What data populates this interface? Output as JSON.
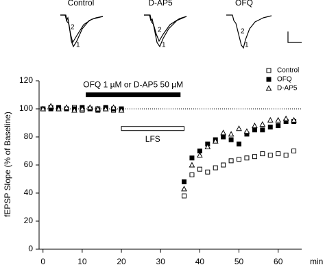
{
  "chart_data": {
    "type": "scatter",
    "traces": [
      {
        "label": "Control"
      },
      {
        "label": "D-AP5"
      },
      {
        "label": "OFQ"
      }
    ],
    "trace_markers": [
      "1",
      "2"
    ],
    "ylabel": "fEPSP Slope (% of Baseline)",
    "xlabel": "min",
    "xlim": [
      -1,
      66
    ],
    "xticks": [
      0,
      10,
      20,
      30,
      40,
      50,
      60
    ],
    "ylim": [
      0,
      120
    ],
    "yticks": [
      0,
      20,
      40,
      60,
      80,
      100,
      120
    ],
    "reference_line": 100,
    "annotations": [
      {
        "text": "OFQ 1 µM or D-AP5 50 µM",
        "x": [
          11,
          35
        ],
        "y": 110,
        "style": "filled"
      },
      {
        "text": "LFS",
        "x": [
          20,
          36
        ],
        "y": 86,
        "style": "open"
      }
    ],
    "legend": "upper right",
    "x": [
      0,
      2,
      4,
      6,
      8,
      10,
      12,
      14,
      16,
      18,
      20,
      36,
      38,
      40,
      42,
      44,
      46,
      48,
      50,
      52,
      54,
      56,
      58,
      60,
      62,
      64
    ],
    "series": [
      {
        "name": "Control",
        "color": "#000000",
        "marker": "square-open",
        "values": [
          100,
          101,
          100,
          100,
          101,
          99,
          100,
          100,
          100,
          99,
          100,
          38,
          53,
          57,
          55,
          58,
          60,
          63,
          64,
          65,
          66,
          68,
          67,
          68,
          67,
          70
        ]
      },
      {
        "name": "OFQ",
        "color": "#000000",
        "marker": "square",
        "values": [
          100,
          100,
          101,
          100,
          100,
          101,
          100,
          99,
          101,
          100,
          100,
          48,
          65,
          70,
          75,
          78,
          80,
          78,
          75,
          82,
          85,
          85,
          87,
          88,
          91,
          91
        ]
      },
      {
        "name": "D-AP5",
        "color": "#000000",
        "marker": "triangle-open",
        "values": [
          100,
          102,
          100,
          101,
          99,
          100,
          101,
          100,
          100,
          101,
          99,
          43,
          60,
          67,
          73,
          77,
          83,
          82,
          86,
          84,
          88,
          89,
          92,
          92,
          93,
          92
        ]
      }
    ]
  }
}
